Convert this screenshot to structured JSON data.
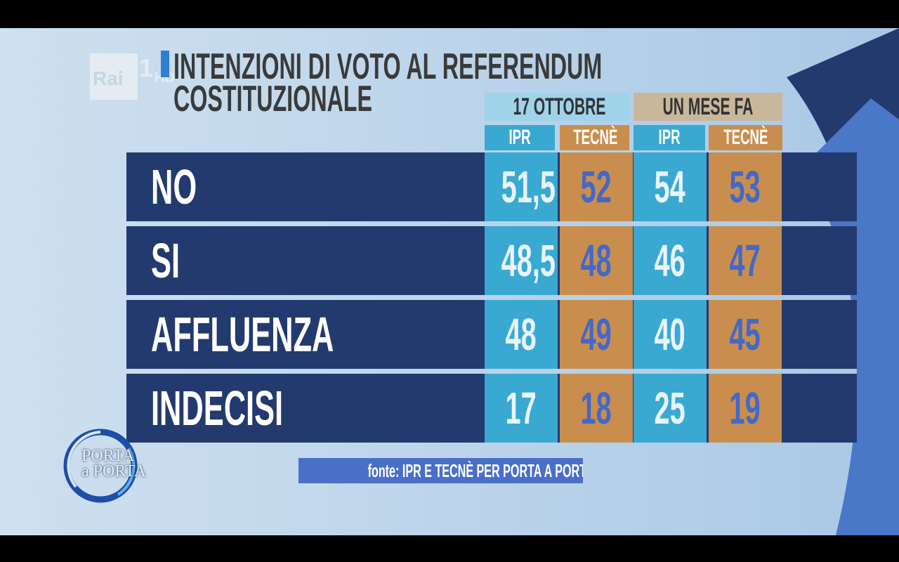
{
  "logo": {
    "brand": "Rai",
    "channel": "1",
    "quality": "HD"
  },
  "chart_data": {
    "type": "table",
    "title": "INTENZIONI DI VOTO AL REFERENDUM COSTITUZIONALE",
    "title_line1": "INTENZIONI DI VOTO AL REFERENDUM",
    "title_line2": "COSTITUZIONALE",
    "groups": [
      "17 OTTOBRE",
      "UN MESE FA"
    ],
    "columns": [
      "IPR",
      "TECNÈ",
      "IPR",
      "TECNÈ"
    ],
    "rows": [
      {
        "label": "NO",
        "values": [
          "51,5",
          "52",
          "54",
          "53"
        ]
      },
      {
        "label": "SI",
        "values": [
          "48,5",
          "48",
          "46",
          "47"
        ]
      },
      {
        "label": "AFFLUENZA",
        "values": [
          "48",
          "49",
          "40",
          "45"
        ]
      },
      {
        "label": "INDECISI",
        "values": [
          "17",
          "18",
          "25",
          "19"
        ]
      }
    ],
    "source": "fonte: IPR E TECNÈ PER PORTA A PORTA"
  },
  "show": {
    "line1": "PORTA",
    "line2": "a PORTA"
  },
  "colors": {
    "row_background": "#233a6e",
    "ipr_cell": "#39a9d2",
    "tecne_cell": "#c98e4d",
    "group_1_header": "#9fd3ea",
    "group_2_header": "#c9b79c",
    "source_bar": "#4a6fc8"
  }
}
